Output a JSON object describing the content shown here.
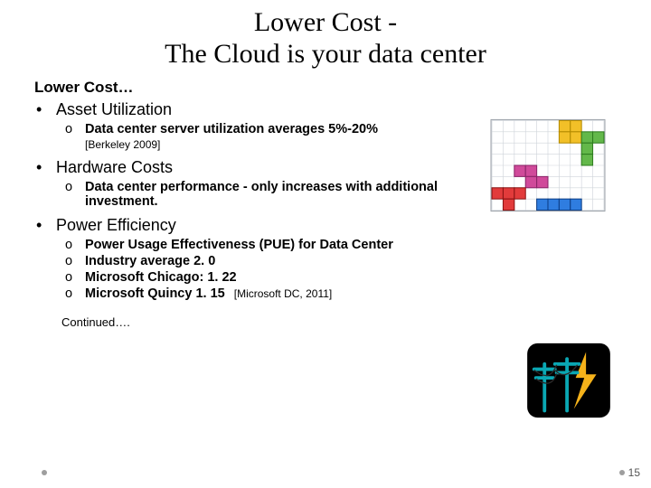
{
  "title": {
    "line1": "Lower Cost -",
    "line2": "The Cloud is your data center",
    "font_family": "Georgia, serif",
    "font_size_pt": 30,
    "color": "#000000"
  },
  "subhead": "Lower Cost…",
  "bullets": [
    {
      "label": "Asset Utilization",
      "subs": [
        {
          "text": "Data center server utilization averages 5%-20%",
          "bold": true,
          "cite_below": "[Berkeley 2009]"
        }
      ]
    },
    {
      "label": "Hardware Costs",
      "subs": [
        {
          "text": "Data center performance - only increases with additional investment.",
          "bold": true
        }
      ]
    },
    {
      "label": "Power Efficiency",
      "subs": [
        {
          "text": "Power Usage Effectiveness (PUE) for Data Center",
          "bold": true
        },
        {
          "text": "Industry average 2. 0",
          "bold": true
        },
        {
          "text": "Microsoft Chicago: 1. 22",
          "bold": true
        },
        {
          "text": "Microsoft Quincy 1. 15",
          "bold": true,
          "inline_cite": "[Microsoft DC, 2011]"
        }
      ]
    }
  ],
  "continued": "Continued….",
  "page_number": "15",
  "tetris": {
    "background": "#ffffff",
    "grid_color": "#cfd4da",
    "border_color": "#9aa0a8",
    "cols": 10,
    "rows": 8,
    "cell": 12,
    "pieces": [
      {
        "color": "#f2c028",
        "stroke": "#b38a00",
        "cells": [
          [
            6,
            0
          ],
          [
            7,
            0
          ],
          [
            6,
            1
          ],
          [
            7,
            1
          ]
        ]
      },
      {
        "color": "#63b84a",
        "stroke": "#2e7d1f",
        "cells": [
          [
            8,
            1
          ],
          [
            9,
            1
          ],
          [
            8,
            2
          ],
          [
            8,
            3
          ]
        ]
      },
      {
        "color": "#d04a9a",
        "stroke": "#8a2568",
        "cells": [
          [
            2,
            4
          ],
          [
            3,
            4
          ],
          [
            3,
            5
          ],
          [
            4,
            5
          ]
        ]
      },
      {
        "color": "#e23b3b",
        "stroke": "#8a1414",
        "cells": [
          [
            0,
            6
          ],
          [
            1,
            6
          ],
          [
            2,
            6
          ],
          [
            1,
            7
          ]
        ]
      },
      {
        "color": "#2f7de0",
        "stroke": "#0d3e85",
        "cells": [
          [
            4,
            7
          ],
          [
            5,
            7
          ],
          [
            6,
            7
          ],
          [
            7,
            7
          ]
        ]
      }
    ]
  },
  "power_icon": {
    "bg": "#000000",
    "pole": "#0aa7b3",
    "bolt": "#f5b21a",
    "wire": "#2a2a2a"
  },
  "colors": {
    "text": "#000000",
    "page_bg": "#ffffff",
    "dot": "#9e9e9e"
  }
}
